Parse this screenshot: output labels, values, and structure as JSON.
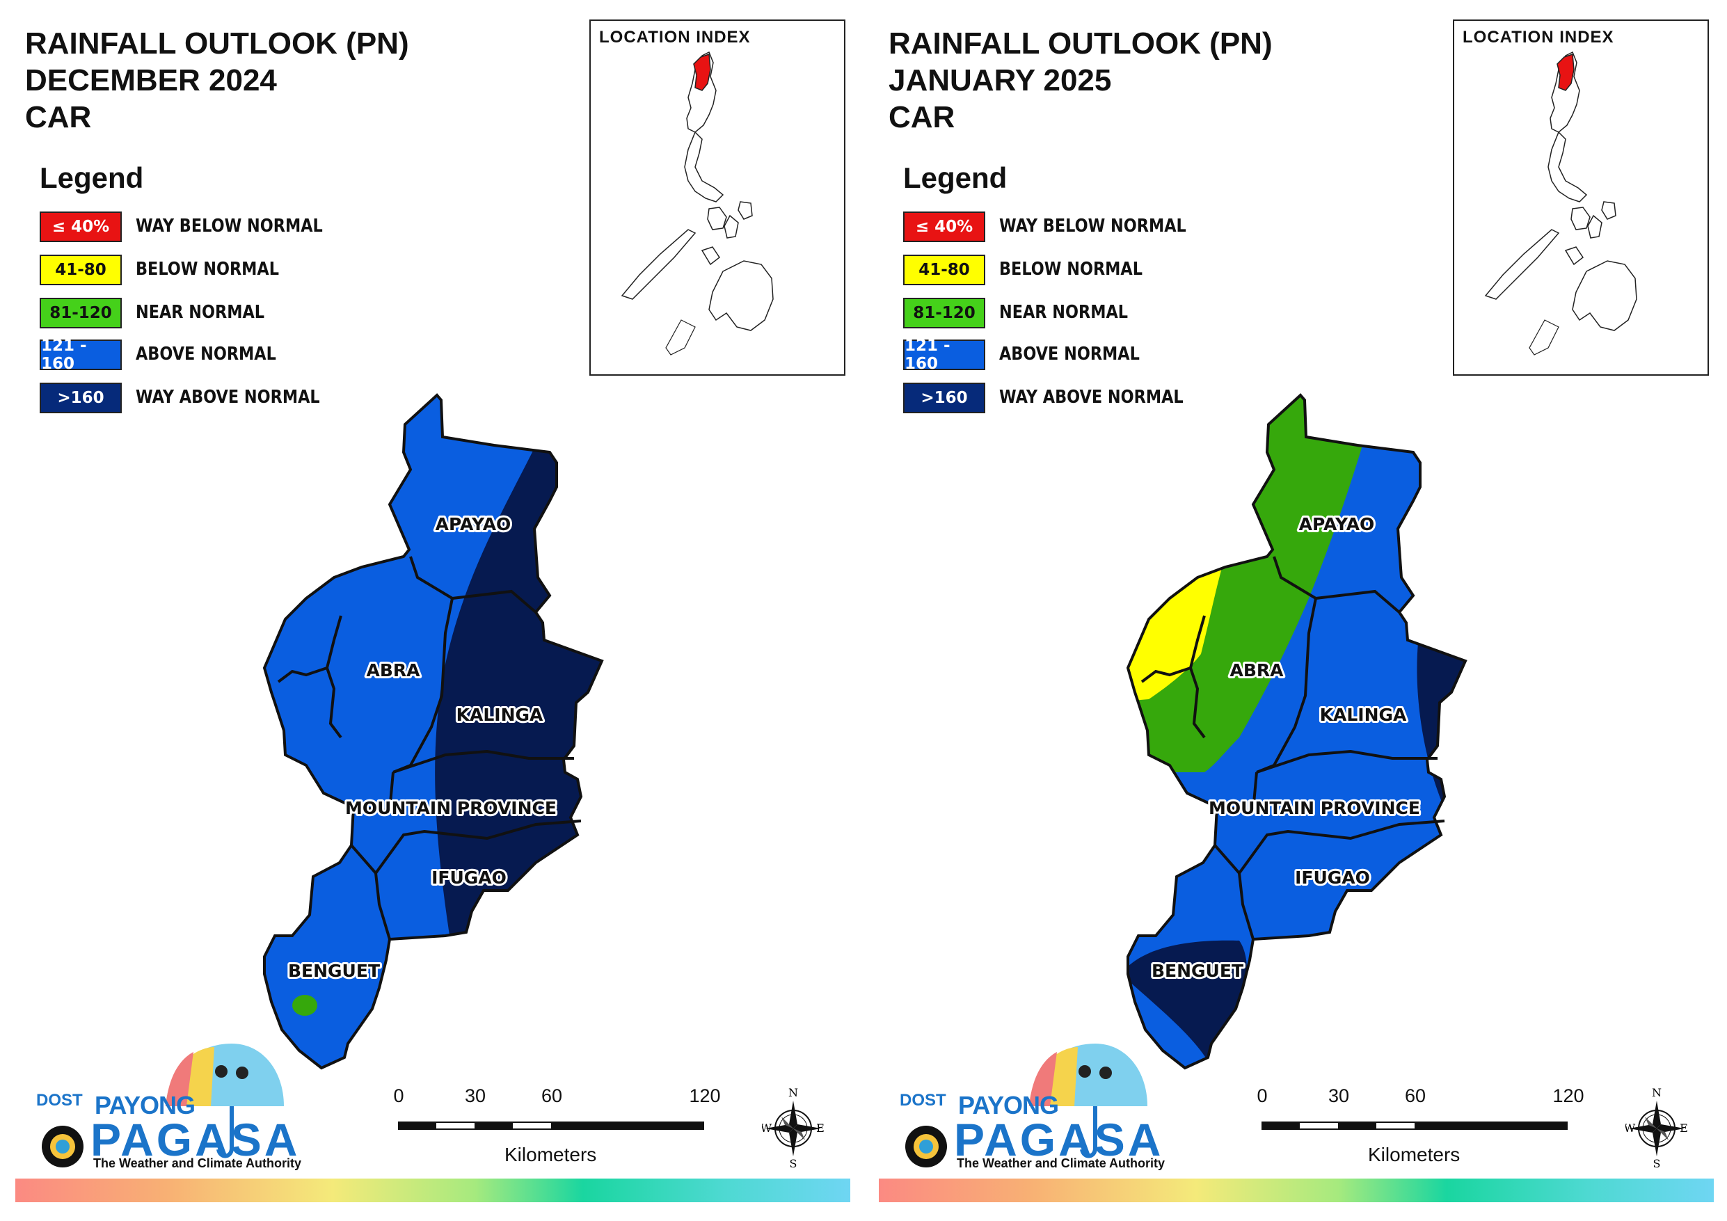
{
  "colors": {
    "way_below_normal": "#e81313",
    "below_normal": "#ffff00",
    "near_normal": "#36a80c",
    "above_normal": "#0a5ee0",
    "way_above_normal": "#061a50",
    "outline": "#111111"
  },
  "legend": {
    "title": "Legend",
    "items": [
      {
        "range": "≤ 40%",
        "label": "WAY BELOW NORMAL",
        "color": "#e81313",
        "text_color": "#ffffff"
      },
      {
        "range": "41-80",
        "label": "BELOW NORMAL",
        "color": "#ffff00",
        "text_color": "#111111"
      },
      {
        "range": "81-120",
        "label": "NEAR NORMAL",
        "color": "#45d11a",
        "text_color": "#111111"
      },
      {
        "range": "121 - 160",
        "label": "ABOVE NORMAL",
        "color": "#0a5ee0",
        "text_color": "#ffffff"
      },
      {
        "range": ">160",
        "label": "WAY ABOVE NORMAL",
        "color": "#062a7a",
        "text_color": "#ffffff"
      }
    ]
  },
  "location_index": {
    "title": "LOCATION INDEX"
  },
  "scale": {
    "ticks": [
      "0",
      "30",
      "60",
      "120"
    ],
    "unit": "Kilometers"
  },
  "compass": {
    "n": "N",
    "s": "S",
    "e": "E",
    "w": "W",
    "icon": "compass-rose-icon"
  },
  "logo": {
    "dost": "DOST",
    "payong": "PAYONG",
    "pagasa": "PAGASA",
    "tagline": "The Weather and Climate Authority",
    "icon": "umbrella-icon"
  },
  "panels": [
    {
      "title_lines": [
        "RAINFALL OUTLOOK (PN)",
        "DECEMBER 2024",
        "CAR"
      ],
      "provinces": [
        {
          "name": "APAYAO",
          "category": "above_normal / way_above_normal (east)"
        },
        {
          "name": "ABRA",
          "category": "above_normal"
        },
        {
          "name": "KALINGA",
          "category": "way_above_normal"
        },
        {
          "name": "MOUNTAIN PROVINCE",
          "category": "above_normal / way_above_normal (east)"
        },
        {
          "name": "IFUGAO",
          "category": "above_normal / way_above_normal (east)"
        },
        {
          "name": "BENGUET",
          "category": "above_normal"
        }
      ]
    },
    {
      "title_lines": [
        "RAINFALL OUTLOOK (PN)",
        "JANUARY 2025",
        "CAR"
      ],
      "provinces": [
        {
          "name": "APAYAO",
          "category": "near_normal / above_normal (east)"
        },
        {
          "name": "ABRA",
          "category": "near_normal / below_normal (west)"
        },
        {
          "name": "KALINGA",
          "category": "above_normal / way_above_normal (east)"
        },
        {
          "name": "MOUNTAIN PROVINCE",
          "category": "above_normal"
        },
        {
          "name": "IFUGAO",
          "category": "above_normal"
        },
        {
          "name": "BENGUET",
          "category": "way_above_normal / above_normal"
        }
      ]
    }
  ]
}
